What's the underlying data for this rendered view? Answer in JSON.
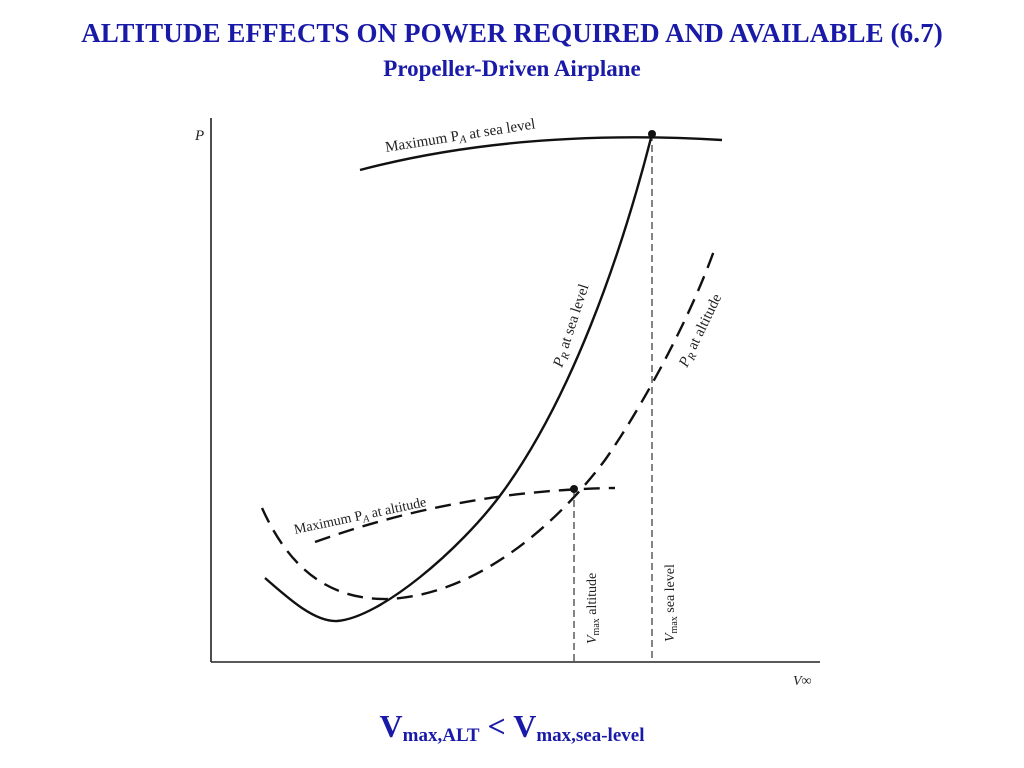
{
  "slide": {
    "title": "ALTITUDE EFFECTS ON POWER REQUIRED AND AVAILABLE (6.7)",
    "subtitle": "Propeller-Driven Airplane"
  },
  "figure": {
    "y_axis_label": "P",
    "x_axis_label": "V∞",
    "curve_labels": {
      "pa_sea_level": {
        "prefix": "Maximum P",
        "sub": "A",
        "suffix": " at sea level"
      },
      "pa_altitude": {
        "prefix": "Maximum P",
        "sub": "A",
        "suffix": " at altitude"
      },
      "pr_sea_level": {
        "prefix": "P",
        "sub": "R",
        "suffix": "  at sea level"
      },
      "pr_altitude": {
        "prefix": "P",
        "sub": "R",
        "suffix": "  at altitude"
      }
    },
    "vmax_labels": {
      "altitude": {
        "prefix": "V",
        "sub": "max",
        "suffix": "  altitude"
      },
      "sea_level": {
        "prefix": "V",
        "sub": "max",
        "suffix": "  sea level"
      }
    }
  },
  "equation": {
    "left_main": "V",
    "left_sub": "max,ALT",
    "operator": " < ",
    "right_main": "V",
    "right_sub": "max,sea-level"
  }
}
